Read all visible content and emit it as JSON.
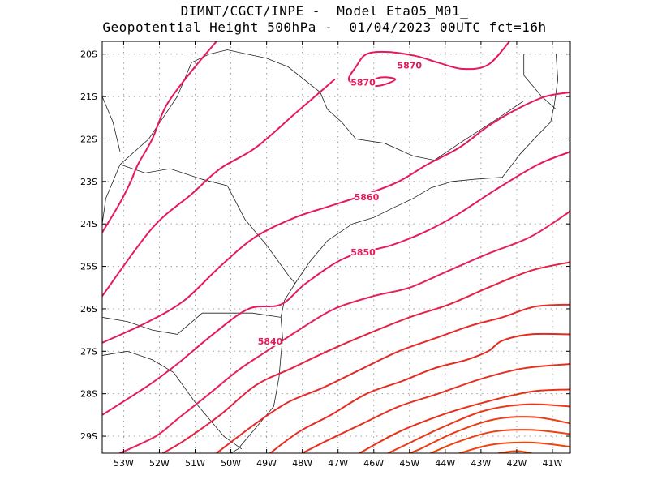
{
  "title_line1": "DIMNT/CGCT/INPE -  Model Eta05_M01_",
  "title_line2": "Geopotential Height 500hPa -  01/04/2023 00UTC fct=16h",
  "chart_data": {
    "type": "contour-map",
    "title": "Geopotential Height 500hPa",
    "model": "Eta05_M01_",
    "source": "DIMNT/CGCT/INPE",
    "init": "01/04/2023 00UTC",
    "forecast": "fct=16h",
    "contour_interval": 10,
    "lon_range": [
      -53.6,
      -40.5
    ],
    "lat_range": [
      -29.4,
      -19.7
    ],
    "x_ticks": [
      "53W",
      "52W",
      "51W",
      "50W",
      "49W",
      "48W",
      "47W",
      "46W",
      "45W",
      "44W",
      "43W",
      "42W",
      "41W"
    ],
    "x_tick_values": [
      -53,
      -52,
      -51,
      -50,
      -49,
      -48,
      -47,
      -46,
      -45,
      -44,
      -43,
      -42,
      -41
    ],
    "y_ticks": [
      "20S",
      "21S",
      "22S",
      "23S",
      "24S",
      "25S",
      "26S",
      "27S",
      "28S",
      "29S"
    ],
    "y_tick_values": [
      -20,
      -21,
      -22,
      -23,
      -24,
      -25,
      -26,
      -27,
      -28,
      -29
    ],
    "labeled_contours": [
      {
        "label": "5870",
        "lon": -45.0,
        "lat": -20.3
      },
      {
        "label": "5870",
        "lon": -46.3,
        "lat": -20.7
      },
      {
        "label": "5860",
        "lon": -46.2,
        "lat": -23.4
      },
      {
        "label": "5850",
        "lon": -46.3,
        "lat": -24.7
      },
      {
        "label": "5840",
        "lon": -48.9,
        "lat": -26.8
      }
    ],
    "contours": [
      {
        "value": 5870,
        "color": "#e6195a",
        "points": [
          [
            -42.2,
            -19.7
          ],
          [
            -42.8,
            -20.25
          ],
          [
            -43.5,
            -20.35
          ],
          [
            -44.2,
            -20.2
          ],
          [
            -44.8,
            -20.05
          ],
          [
            -45.6,
            -19.95
          ],
          [
            -46.2,
            -20.0
          ],
          [
            -46.5,
            -20.3
          ],
          [
            -46.7,
            -20.6
          ],
          [
            -46.4,
            -20.7
          ],
          [
            -45.8,
            -20.55
          ],
          [
            -45.4,
            -20.6
          ],
          [
            -45.9,
            -20.75
          ],
          [
            -46.6,
            -20.7
          ]
        ]
      },
      {
        "value": 5870,
        "color": "#e6195a",
        "points": [
          [
            -50.4,
            -19.7
          ],
          [
            -51.1,
            -20.4
          ],
          [
            -51.8,
            -21.2
          ],
          [
            -52.2,
            -22.0
          ],
          [
            -52.6,
            -22.6
          ],
          [
            -52.8,
            -23.0
          ],
          [
            -53.1,
            -23.5
          ],
          [
            -53.6,
            -24.2
          ]
        ]
      },
      {
        "value": 5860,
        "color": "#e6195a",
        "points": [
          [
            -40.5,
            -20.9
          ],
          [
            -41.2,
            -21.0
          ],
          [
            -42.0,
            -21.3
          ],
          [
            -42.8,
            -21.7
          ],
          [
            -43.6,
            -22.2
          ],
          [
            -44.5,
            -22.6
          ],
          [
            -45.3,
            -23.0
          ],
          [
            -46.2,
            -23.3
          ],
          [
            -47.3,
            -23.6
          ],
          [
            -48.2,
            -23.85
          ],
          [
            -49.3,
            -24.3
          ],
          [
            -50.3,
            -25.0
          ],
          [
            -51.3,
            -25.8
          ],
          [
            -52.3,
            -26.3
          ],
          [
            -53.6,
            -26.8
          ]
        ]
      },
      {
        "value": 5860,
        "color": "#e6195a",
        "points": [
          [
            -47.1,
            -20.6
          ],
          [
            -48.2,
            -21.4
          ],
          [
            -49.3,
            -22.2
          ],
          [
            -50.3,
            -22.7
          ],
          [
            -51.1,
            -23.3
          ],
          [
            -52.2,
            -24.1
          ],
          [
            -53.6,
            -25.7
          ]
        ]
      },
      {
        "value": 5850,
        "color": "#e6195a",
        "points": [
          [
            -40.5,
            -22.3
          ],
          [
            -41.4,
            -22.6
          ],
          [
            -42.6,
            -23.2
          ],
          [
            -43.7,
            -23.8
          ],
          [
            -44.6,
            -24.2
          ],
          [
            -45.5,
            -24.5
          ],
          [
            -46.8,
            -24.8
          ],
          [
            -47.9,
            -25.4
          ],
          [
            -48.6,
            -25.9
          ],
          [
            -49.5,
            -26.0
          ],
          [
            -50.5,
            -26.6
          ],
          [
            -51.5,
            -27.3
          ],
          [
            -52.3,
            -27.8
          ],
          [
            -53.6,
            -28.5
          ]
        ]
      },
      {
        "value": 5840,
        "color": "#e6215a",
        "points": [
          [
            -40.5,
            -23.7
          ],
          [
            -41.6,
            -24.3
          ],
          [
            -42.8,
            -24.7
          ],
          [
            -43.9,
            -25.1
          ],
          [
            -45.0,
            -25.5
          ],
          [
            -46.0,
            -25.7
          ],
          [
            -47.1,
            -26.0
          ],
          [
            -48.1,
            -26.5
          ],
          [
            -49.0,
            -27.0
          ],
          [
            -49.8,
            -27.45
          ],
          [
            -50.6,
            -28.0
          ],
          [
            -51.5,
            -28.6
          ],
          [
            -52.1,
            -29.0
          ],
          [
            -53.1,
            -29.4
          ]
        ]
      },
      {
        "value": 5830,
        "color": "#e62040",
        "points": [
          [
            -40.5,
            -24.9
          ],
          [
            -41.6,
            -25.1
          ],
          [
            -42.8,
            -25.5
          ],
          [
            -43.9,
            -25.9
          ],
          [
            -45.0,
            -26.2
          ],
          [
            -46.2,
            -26.6
          ],
          [
            -47.3,
            -27.0
          ],
          [
            -48.3,
            -27.4
          ],
          [
            -49.3,
            -27.8
          ],
          [
            -50.3,
            -28.5
          ],
          [
            -51.3,
            -29.1
          ],
          [
            -51.9,
            -29.4
          ]
        ]
      },
      {
        "value": 5820,
        "color": "#e62a2a",
        "points": [
          [
            -40.5,
            -25.9
          ],
          [
            -41.5,
            -25.95
          ],
          [
            -42.4,
            -26.2
          ],
          [
            -43.3,
            -26.4
          ],
          [
            -44.3,
            -26.7
          ],
          [
            -45.3,
            -27.0
          ],
          [
            -46.3,
            -27.4
          ],
          [
            -47.4,
            -27.85
          ],
          [
            -48.4,
            -28.2
          ],
          [
            -49.3,
            -28.7
          ],
          [
            -50.4,
            -29.4
          ]
        ]
      },
      {
        "value": 5810,
        "color": "#e62a20",
        "points": [
          [
            -40.5,
            -26.6
          ],
          [
            -41.6,
            -26.6
          ],
          [
            -42.4,
            -26.75
          ],
          [
            -42.8,
            -27.0
          ],
          [
            -43.4,
            -27.2
          ],
          [
            -44.3,
            -27.4
          ],
          [
            -45.2,
            -27.7
          ],
          [
            -46.2,
            -28.0
          ],
          [
            -47.2,
            -28.5
          ],
          [
            -48.1,
            -28.9
          ],
          [
            -48.9,
            -29.4
          ]
        ]
      },
      {
        "value": 5800,
        "color": "#e63020",
        "points": [
          [
            -40.5,
            -27.3
          ],
          [
            -41.8,
            -27.4
          ],
          [
            -43.0,
            -27.65
          ],
          [
            -44.2,
            -28.0
          ],
          [
            -45.3,
            -28.3
          ],
          [
            -46.3,
            -28.7
          ],
          [
            -47.3,
            -29.1
          ],
          [
            -48.0,
            -29.4
          ]
        ]
      },
      {
        "value": 5790,
        "color": "#e83018",
        "points": [
          [
            -40.5,
            -27.9
          ],
          [
            -41.6,
            -27.95
          ],
          [
            -42.9,
            -28.2
          ],
          [
            -44.1,
            -28.5
          ],
          [
            -45.3,
            -28.9
          ],
          [
            -46.4,
            -29.4
          ]
        ]
      },
      {
        "value": 5780,
        "color": "#ea3818",
        "points": [
          [
            -40.5,
            -28.3
          ],
          [
            -41.7,
            -28.25
          ],
          [
            -42.9,
            -28.4
          ],
          [
            -44.1,
            -28.8
          ],
          [
            -45.1,
            -29.2
          ],
          [
            -45.6,
            -29.4
          ]
        ]
      },
      {
        "value": 5770,
        "color": "#ec3c14",
        "points": [
          [
            -40.5,
            -28.7
          ],
          [
            -41.5,
            -28.55
          ],
          [
            -42.6,
            -28.6
          ],
          [
            -43.7,
            -28.9
          ],
          [
            -44.7,
            -29.3
          ],
          [
            -45.0,
            -29.4
          ]
        ]
      },
      {
        "value": 5760,
        "color": "#ee4010",
        "points": [
          [
            -40.5,
            -28.95
          ],
          [
            -41.6,
            -28.85
          ],
          [
            -42.7,
            -28.9
          ],
          [
            -43.7,
            -29.15
          ],
          [
            -44.4,
            -29.4
          ]
        ]
      },
      {
        "value": 5750,
        "color": "#f0440c",
        "points": [
          [
            -40.5,
            -29.25
          ],
          [
            -41.6,
            -29.15
          ],
          [
            -42.7,
            -29.2
          ],
          [
            -43.6,
            -29.4
          ]
        ]
      },
      {
        "value": 5740,
        "color": "#f24808",
        "points": [
          [
            -41.6,
            -29.4
          ],
          [
            -42.0,
            -29.35
          ],
          [
            -42.5,
            -29.4
          ]
        ]
      }
    ],
    "coastline": [
      [
        -40.9,
        -20.0
      ],
      [
        -40.85,
        -20.6
      ],
      [
        -40.95,
        -21.2
      ],
      [
        -41.05,
        -21.6
      ],
      [
        -41.4,
        -21.9
      ],
      [
        -41.9,
        -22.35
      ],
      [
        -42.4,
        -22.9
      ],
      [
        -43.2,
        -22.95
      ],
      [
        -43.8,
        -23.0
      ],
      [
        -44.4,
        -23.15
      ],
      [
        -44.9,
        -23.4
      ],
      [
        -45.4,
        -23.6
      ],
      [
        -46.0,
        -23.85
      ],
      [
        -46.6,
        -24.0
      ],
      [
        -47.3,
        -24.4
      ],
      [
        -47.8,
        -24.9
      ],
      [
        -48.2,
        -25.4
      ],
      [
        -48.5,
        -25.8
      ],
      [
        -48.6,
        -26.2
      ],
      [
        -48.55,
        -26.7
      ],
      [
        -48.6,
        -27.1
      ],
      [
        -48.65,
        -27.6
      ],
      [
        -48.8,
        -28.3
      ],
      [
        -49.3,
        -28.8
      ],
      [
        -49.8,
        -29.3
      ],
      [
        -50.0,
        -29.4
      ]
    ],
    "borders": [
      [
        [
          -40.9,
          -21.3
        ],
        [
          -41.3,
          -21.0
        ],
        [
          -41.8,
          -20.5
        ],
        [
          -41.8,
          -20.0
        ]
      ],
      [
        [
          -44.9,
          -22.4
        ],
        [
          -44.3,
          -22.5
        ],
        [
          -43.6,
          -22.1
        ],
        [
          -42.5,
          -21.5
        ],
        [
          -41.8,
          -21.1
        ]
      ],
      [
        [
          -44.9,
          -22.4
        ],
        [
          -45.7,
          -22.1
        ],
        [
          -46.5,
          -22.0
        ],
        [
          -46.9,
          -21.6
        ],
        [
          -47.3,
          -21.3
        ],
        [
          -47.5,
          -20.9
        ],
        [
          -48.4,
          -20.3
        ],
        [
          -49.0,
          -20.1
        ],
        [
          -50.1,
          -19.9
        ],
        [
          -50.6,
          -20.0
        ],
        [
          -51.1,
          -20.2
        ],
        [
          -51.5,
          -21.0
        ],
        [
          -52.3,
          -22.0
        ],
        [
          -53.1,
          -22.6
        ]
      ],
      [
        [
          -53.1,
          -22.6
        ],
        [
          -52.4,
          -22.8
        ],
        [
          -51.7,
          -22.7
        ],
        [
          -50.8,
          -22.95
        ],
        [
          -50.1,
          -23.1
        ],
        [
          -49.6,
          -23.9
        ],
        [
          -49.0,
          -24.5
        ],
        [
          -48.4,
          -25.2
        ],
        [
          -48.2,
          -25.4
        ]
      ],
      [
        [
          -53.6,
          -26.2
        ],
        [
          -52.9,
          -26.3
        ],
        [
          -52.2,
          -26.5
        ],
        [
          -51.5,
          -26.6
        ],
        [
          -50.8,
          -26.1
        ],
        [
          -50.0,
          -26.1
        ],
        [
          -49.4,
          -26.1
        ],
        [
          -48.6,
          -26.2
        ]
      ],
      [
        [
          -53.6,
          -27.1
        ],
        [
          -52.9,
          -27.0
        ],
        [
          -52.2,
          -27.2
        ],
        [
          -51.6,
          -27.5
        ],
        [
          -51.0,
          -28.2
        ],
        [
          -50.2,
          -29.0
        ],
        [
          -49.7,
          -29.3
        ]
      ],
      [
        [
          -53.6,
          -24.0
        ],
        [
          -53.5,
          -23.4
        ],
        [
          -53.1,
          -22.6
        ]
      ],
      [
        [
          -53.1,
          -22.3
        ],
        [
          -53.3,
          -21.6
        ],
        [
          -53.6,
          -21.0
        ]
      ]
    ]
  }
}
